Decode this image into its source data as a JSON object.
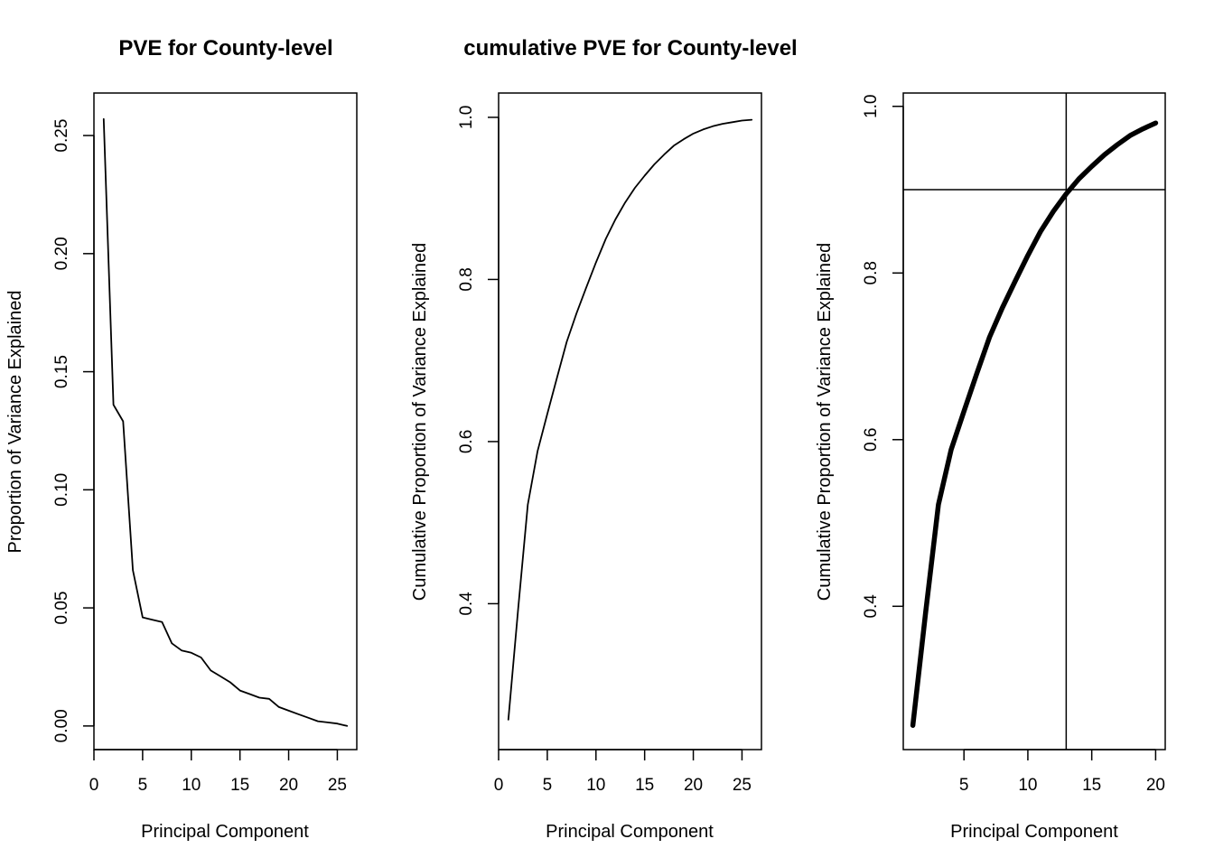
{
  "chart_data": [
    {
      "type": "line",
      "title": "PVE for County-level",
      "xlabel": "Principal Component",
      "ylabel": "Proportion of Variance Explained",
      "xlim": [
        0,
        27
      ],
      "ylim": [
        -0.01,
        0.268
      ],
      "xticks": [
        0,
        5,
        10,
        15,
        20,
        25
      ],
      "yticks": [
        0.0,
        0.05,
        0.1,
        0.15,
        0.2,
        0.25
      ],
      "ytick_labels": [
        "0.00",
        "0.05",
        "0.10",
        "0.15",
        "0.20",
        "0.25"
      ],
      "grid": false,
      "series": [
        {
          "x": [
            1,
            2,
            3,
            4,
            5,
            6,
            7,
            8,
            9,
            10,
            11,
            12,
            13,
            14,
            15,
            16,
            17,
            18,
            19,
            20,
            21,
            22,
            23,
            24,
            25,
            26
          ],
          "values": [
            0.257,
            0.136,
            0.129,
            0.066,
            0.046,
            0.045,
            0.044,
            0.035,
            0.032,
            0.031,
            0.029,
            0.0235,
            0.021,
            0.0185,
            0.015,
            0.0135,
            0.012,
            0.0115,
            0.008,
            0.0065,
            0.005,
            0.0035,
            0.002,
            0.0015,
            0.001,
            0.0
          ],
          "color": "#000000",
          "line_width": "thin"
        }
      ]
    },
    {
      "type": "line",
      "title": "cumulative PVE for County-level",
      "xlabel": "Principal Component",
      "ylabel": "Cumulative Proportion of Variance Explained",
      "xlim": [
        0,
        27
      ],
      "ylim": [
        0.22,
        1.03
      ],
      "xticks": [
        0,
        5,
        10,
        15,
        20,
        25
      ],
      "yticks": [
        0.4,
        0.6,
        0.8,
        1.0
      ],
      "ytick_labels": [
        "0.4",
        "0.6",
        "0.8",
        "1.0"
      ],
      "grid": false,
      "series": [
        {
          "x": [
            1,
            2,
            3,
            4,
            5,
            6,
            7,
            8,
            9,
            10,
            11,
            12,
            13,
            14,
            15,
            16,
            17,
            18,
            19,
            20,
            21,
            22,
            23,
            24,
            25,
            26
          ],
          "values": [
            0.257,
            0.393,
            0.522,
            0.588,
            0.634,
            0.679,
            0.723,
            0.758,
            0.79,
            0.821,
            0.85,
            0.874,
            0.895,
            0.913,
            0.928,
            0.942,
            0.954,
            0.965,
            0.973,
            0.98,
            0.985,
            0.989,
            0.992,
            0.994,
            0.996,
            0.997
          ],
          "color": "#000000",
          "line_width": "thin"
        }
      ]
    },
    {
      "type": "line",
      "title": "",
      "xlabel": "Principal Component",
      "ylabel": "Cumulative Proportion of Variance Explained",
      "xlim": [
        0.25,
        20.75
      ],
      "ylim": [
        0.228,
        1.016
      ],
      "xticks": [
        5,
        10,
        15,
        20
      ],
      "yticks": [
        0.4,
        0.6,
        0.8,
        1.0
      ],
      "ytick_labels": [
        "0.4",
        "0.6",
        "0.8",
        "1.0"
      ],
      "grid": false,
      "reference_lines": {
        "vertical_x": 13,
        "horizontal_y": 0.9
      },
      "series": [
        {
          "x": [
            1,
            2,
            3,
            4,
            5,
            6,
            7,
            8,
            9,
            10,
            11,
            12,
            13,
            14,
            15,
            16,
            17,
            18,
            19,
            20
          ],
          "values": [
            0.257,
            0.393,
            0.522,
            0.588,
            0.634,
            0.679,
            0.723,
            0.758,
            0.79,
            0.821,
            0.85,
            0.874,
            0.895,
            0.913,
            0.928,
            0.942,
            0.954,
            0.965,
            0.973,
            0.98
          ],
          "color": "#000000",
          "line_width": "thick"
        }
      ]
    }
  ]
}
